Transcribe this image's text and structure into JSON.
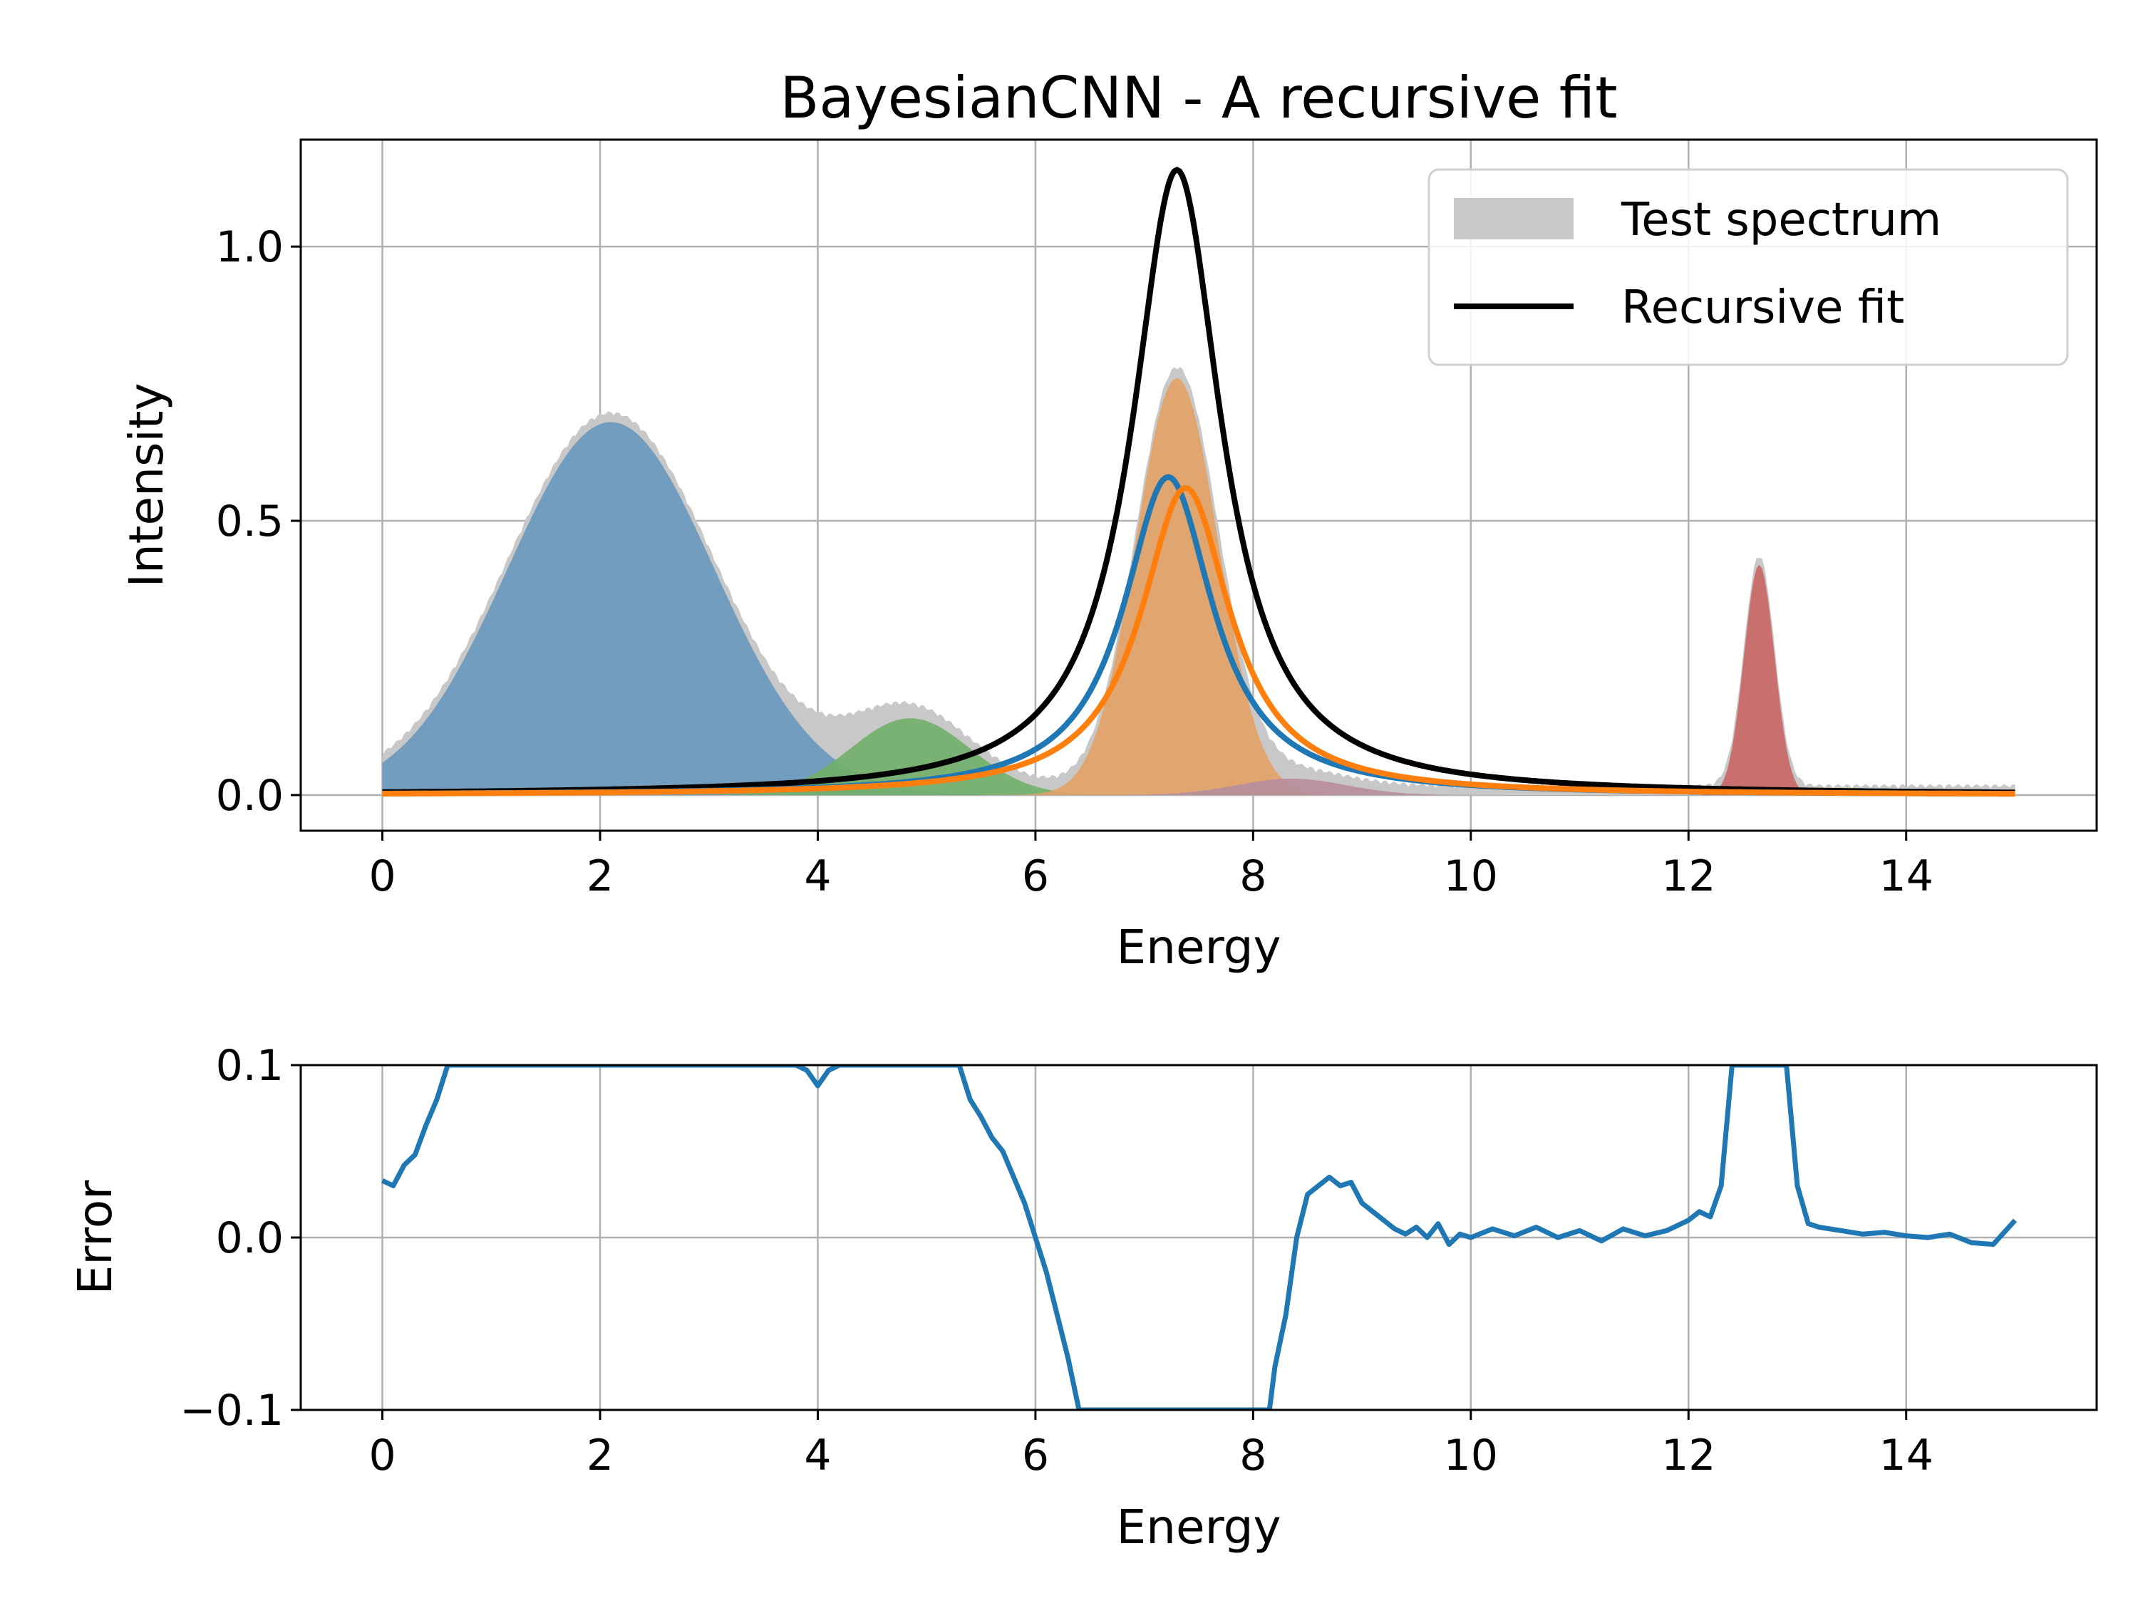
{
  "chart_data": [
    {
      "type": "area",
      "title": "BayesianCNN - A recursive fit",
      "xlabel": "Energy",
      "ylabel": "Intensity",
      "xlim": [
        -0.75,
        15.75
      ],
      "ylim": [
        -0.065,
        1.195
      ],
      "xticks": [
        "0",
        "2",
        "4",
        "6",
        "8",
        "10",
        "12",
        "14"
      ],
      "yticks": [
        "0.0",
        "0.5",
        "1.0"
      ],
      "grid": true,
      "legend": {
        "placement": "top-right",
        "entries": [
          {
            "label": "Test spectrum",
            "kind": "patch",
            "color": "#c8c8c8"
          },
          {
            "label": "Recursive fit",
            "kind": "line",
            "color": "#000000"
          }
        ]
      },
      "components": [
        {
          "shape": "gaussian",
          "center": 2.1,
          "amplitude": 0.68,
          "sigma": 0.95,
          "color": "#6b99bd"
        },
        {
          "shape": "gaussian",
          "center": 4.85,
          "amplitude": 0.14,
          "sigma": 0.55,
          "color": "#72b06a"
        },
        {
          "shape": "gaussian",
          "center": 7.3,
          "amplitude": 0.76,
          "sigma": 0.38,
          "color": "#e3a268"
        },
        {
          "shape": "gaussian",
          "center": 8.35,
          "amplitude": 0.03,
          "sigma": 0.5,
          "color": "#b78f9c"
        },
        {
          "shape": "gaussian",
          "center": 12.65,
          "amplitude": 0.42,
          "sigma": 0.14,
          "color": "#c96866"
        }
      ],
      "test_spectrum": {
        "color": "#c8c8c8",
        "x_range": [
          0,
          15
        ]
      },
      "lines": [
        {
          "name": "Recursive fit",
          "shape": "lorentzian",
          "center": 7.3,
          "amplitude": 1.14,
          "gamma": 0.5,
          "color": "#000000"
        },
        {
          "shape": "lorentzian",
          "center": 7.22,
          "amplitude": 0.58,
          "gamma": 0.5,
          "color": "#1f77b4"
        },
        {
          "shape": "lorentzian",
          "center": 7.38,
          "amplitude": 0.56,
          "gamma": 0.5,
          "color": "#ff7f0e"
        }
      ]
    },
    {
      "type": "line",
      "xlabel": "Energy",
      "ylabel": "Error",
      "xlim": [
        -0.75,
        15.75
      ],
      "ylim": [
        -0.1,
        0.1
      ],
      "xticks": [
        "0",
        "2",
        "4",
        "6",
        "8",
        "10",
        "12",
        "14"
      ],
      "yticks": [
        "−0.1",
        "0.0",
        "0.1"
      ],
      "grid": true,
      "series": [
        {
          "color": "#1f77b4",
          "x": [
            0.0,
            0.1,
            0.2,
            0.3,
            0.4,
            0.5,
            0.6,
            3.8,
            3.9,
            4.0,
            4.1,
            4.2,
            5.3,
            5.4,
            5.5,
            5.6,
            5.7,
            5.8,
            5.9,
            6.0,
            6.1,
            6.2,
            6.3,
            6.4,
            8.15,
            8.2,
            8.3,
            8.4,
            8.5,
            8.6,
            8.7,
            8.8,
            8.9,
            9.0,
            9.1,
            9.2,
            9.3,
            9.4,
            9.5,
            9.6,
            9.7,
            9.8,
            9.9,
            10.0,
            10.2,
            10.4,
            10.6,
            10.8,
            11.0,
            11.2,
            11.4,
            11.6,
            11.8,
            12.0,
            12.1,
            12.2,
            12.3,
            12.4,
            12.9,
            13.0,
            13.1,
            13.2,
            13.4,
            13.6,
            13.8,
            14.0,
            14.2,
            14.4,
            14.6,
            14.8,
            15.0
          ],
          "y": [
            0.033,
            0.03,
            0.042,
            0.048,
            0.065,
            0.08,
            0.1,
            0.1,
            0.097,
            0.088,
            0.097,
            0.1,
            0.1,
            0.08,
            0.07,
            0.058,
            0.05,
            0.035,
            0.02,
            0.0,
            -0.02,
            -0.045,
            -0.07,
            -0.1,
            -0.1,
            -0.075,
            -0.045,
            0.0,
            0.025,
            0.03,
            0.035,
            0.03,
            0.032,
            0.02,
            0.015,
            0.01,
            0.005,
            0.002,
            0.006,
            0.0,
            0.008,
            -0.004,
            0.002,
            0.0,
            0.005,
            0.001,
            0.006,
            0.0,
            0.004,
            -0.002,
            0.005,
            0.001,
            0.004,
            0.01,
            0.015,
            0.012,
            0.03,
            0.1,
            0.1,
            0.03,
            0.008,
            0.006,
            0.004,
            0.002,
            0.003,
            0.001,
            0.0,
            0.002,
            -0.003,
            -0.004,
            0.01
          ]
        }
      ]
    }
  ]
}
